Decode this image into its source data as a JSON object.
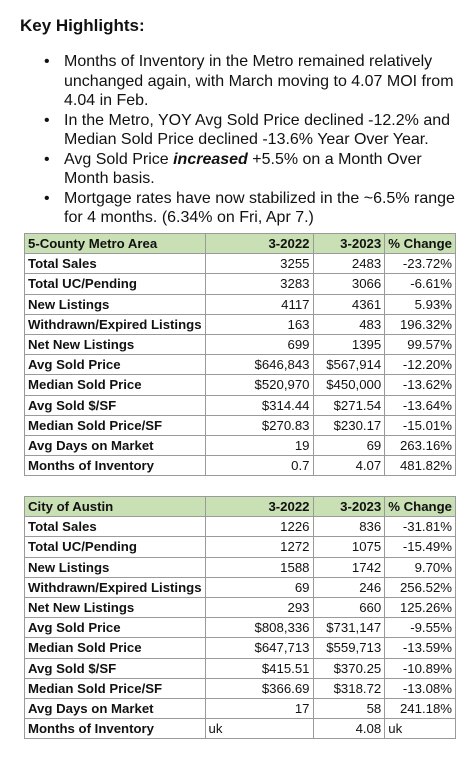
{
  "heading": "Key Highlights:",
  "bullets": [
    {
      "pre": "Months of Inventory in the Metro remained relatively unchanged again, with March moving to 4.07 MOI from 4.04 in Feb.",
      "em": "",
      "post": ""
    },
    {
      "pre": "In the Metro, YOY Avg Sold Price declined -12.2% and Median Sold Price declined -13.6% Year Over Year.",
      "em": "",
      "post": ""
    },
    {
      "pre": "Avg Sold Price ",
      "em": "increased",
      "post": " +5.5% on a Month Over Month basis."
    },
    {
      "pre": "Mortgage rates have now stabilized in the ~6.5% range for 4 months. (6.34% on Fri, Apr 7.)",
      "em": "",
      "post": ""
    }
  ],
  "tables": [
    {
      "headers": [
        "5-County Metro Area",
        "3-2022",
        "3-2023",
        "% Change"
      ],
      "rows": [
        [
          "Total Sales",
          "3255",
          "2483",
          "-23.72%"
        ],
        [
          "Total UC/Pending",
          "3283",
          "3066",
          "-6.61%"
        ],
        [
          "New Listings",
          "4117",
          "4361",
          "5.93%"
        ],
        [
          "Withdrawn/Expired Listings",
          "163",
          "483",
          "196.32%"
        ],
        [
          "Net New Listings",
          "699",
          "1395",
          "99.57%"
        ],
        [
          "Avg Sold Price",
          "$646,843",
          "$567,914",
          "-12.20%"
        ],
        [
          "Median Sold Price",
          "$520,970",
          "$450,000",
          "-13.62%"
        ],
        [
          "Avg Sold $/SF",
          "$314.44",
          "$271.54",
          "-13.64%"
        ],
        [
          "Median Sold Price/SF",
          "$270.83",
          "$230.17",
          "-15.01%"
        ],
        [
          "Avg Days on Market",
          "19",
          "69",
          "263.16%"
        ],
        [
          "Months of Inventory",
          "0.7",
          "4.07",
          "481.82%"
        ]
      ]
    },
    {
      "headers": [
        "City of Austin",
        "3-2022",
        "3-2023",
        "% Change"
      ],
      "rows": [
        [
          "Total Sales",
          "1226",
          "836",
          "-31.81%"
        ],
        [
          "Total UC/Pending",
          "1272",
          "1075",
          "-15.49%"
        ],
        [
          "New Listings",
          "1588",
          "1742",
          "9.70%"
        ],
        [
          "Withdrawn/Expired Listings",
          "69",
          "246",
          "256.52%"
        ],
        [
          "Net New Listings",
          "293",
          "660",
          "125.26%"
        ],
        [
          "Avg Sold Price",
          "$808,336",
          "$731,147",
          "-9.55%"
        ],
        [
          "Median Sold Price",
          "$647,713",
          "$559,713",
          "-13.59%"
        ],
        [
          "Avg Sold $/SF",
          "$415.51",
          "$370.25",
          "-10.89%"
        ],
        [
          "Median Sold Price/SF",
          "$366.69",
          "$318.72",
          "-13.08%"
        ],
        [
          "Avg Days on Market",
          "17",
          "58",
          "241.18%"
        ],
        [
          "Months of Inventory",
          "uk",
          "4.08",
          "uk"
        ]
      ]
    }
  ]
}
